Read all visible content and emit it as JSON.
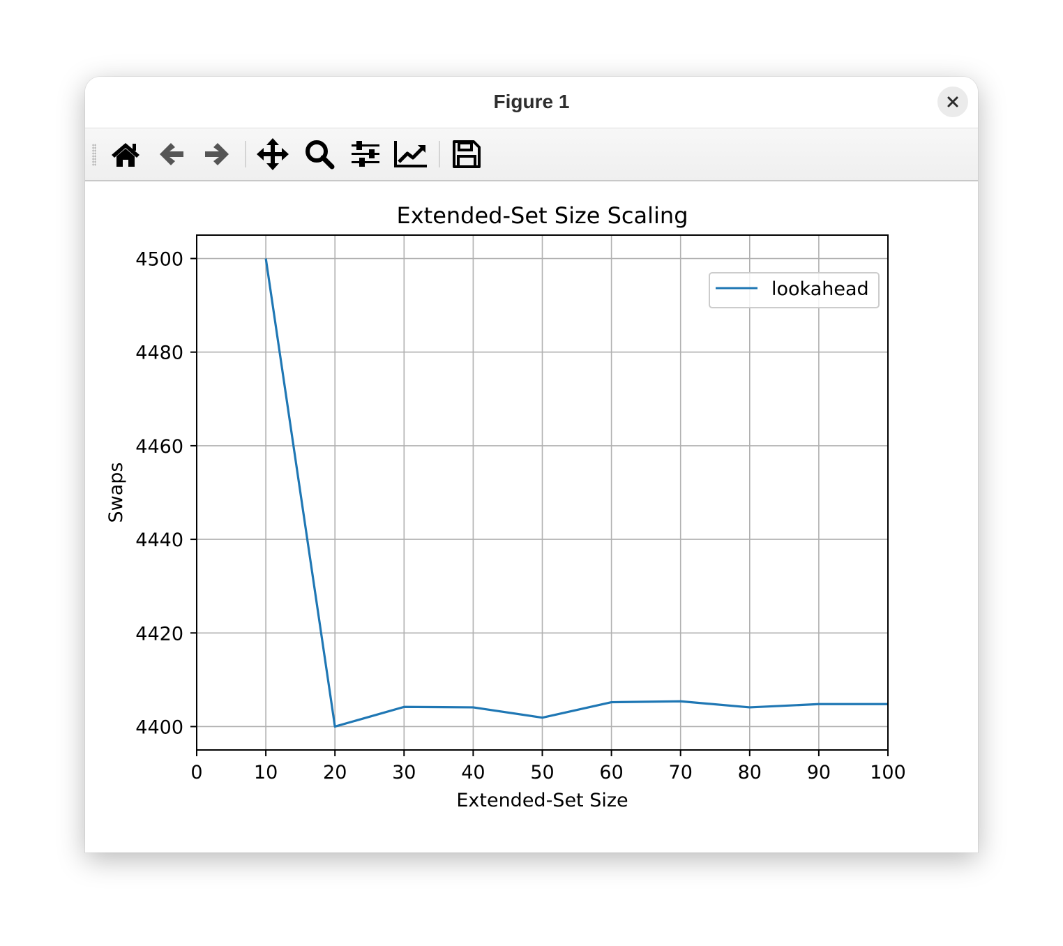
{
  "window": {
    "title": "Figure 1"
  },
  "toolbar": {
    "tools": [
      {
        "name": "home",
        "icon": "home-icon"
      },
      {
        "name": "back",
        "icon": "arrow-left-icon"
      },
      {
        "name": "forward",
        "icon": "arrow-right-icon"
      },
      {
        "name": "pan",
        "icon": "move-icon"
      },
      {
        "name": "zoom",
        "icon": "magnifier-icon"
      },
      {
        "name": "subplots",
        "icon": "sliders-icon"
      },
      {
        "name": "edit-axes",
        "icon": "line-chart-icon"
      },
      {
        "name": "save",
        "icon": "floppy-disk-icon"
      }
    ]
  },
  "colors": {
    "series": "#1f77b4",
    "grid": "#b0b0b0",
    "axis": "#000000"
  },
  "chart_data": {
    "type": "line",
    "title": "Extended-Set Size Scaling",
    "xlabel": "Extended-Set Size",
    "ylabel": "Swaps",
    "xlim": [
      0,
      100
    ],
    "ylim": [
      4395,
      4505
    ],
    "xticks": [
      0,
      10,
      20,
      30,
      40,
      50,
      60,
      70,
      80,
      90,
      100
    ],
    "yticks": [
      4400,
      4420,
      4440,
      4460,
      4480,
      4500
    ],
    "grid": true,
    "legend": "top-right",
    "series": [
      {
        "name": "lookahead",
        "color": "#1f77b4",
        "x": [
          10,
          20,
          30,
          40,
          50,
          60,
          70,
          80,
          90,
          100
        ],
        "y": [
          4500,
          4400,
          4404.2,
          4404.1,
          4401.9,
          4405.2,
          4405.4,
          4404.1,
          4404.8,
          4404.8
        ]
      }
    ]
  }
}
